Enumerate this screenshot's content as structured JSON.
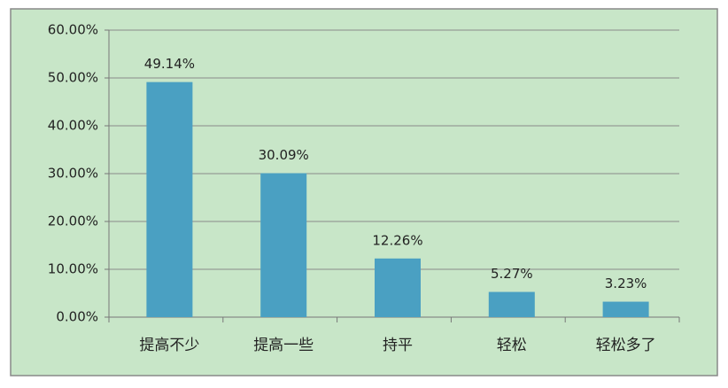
{
  "chart_data": {
    "type": "bar",
    "categories": [
      "提高不少",
      "提高一些",
      "持平",
      "轻松",
      "轻松多了"
    ],
    "values": [
      49.14,
      30.09,
      12.26,
      5.27,
      3.23
    ],
    "value_labels": [
      "49.14%",
      "30.09%",
      "12.26%",
      "5.27%",
      "3.23%"
    ],
    "color": "#4aa0c2",
    "ylim": [
      0,
      60
    ],
    "yticks": [
      {
        "value": 0,
        "label": "0.00%"
      },
      {
        "value": 10,
        "label": "10.00%"
      },
      {
        "value": 20,
        "label": "20.00%"
      },
      {
        "value": 30,
        "label": "30.00%"
      },
      {
        "value": 40,
        "label": "40.00%"
      },
      {
        "value": 50,
        "label": "50.00%"
      },
      {
        "value": 60,
        "label": "60.00%"
      }
    ],
    "grid": true
  }
}
